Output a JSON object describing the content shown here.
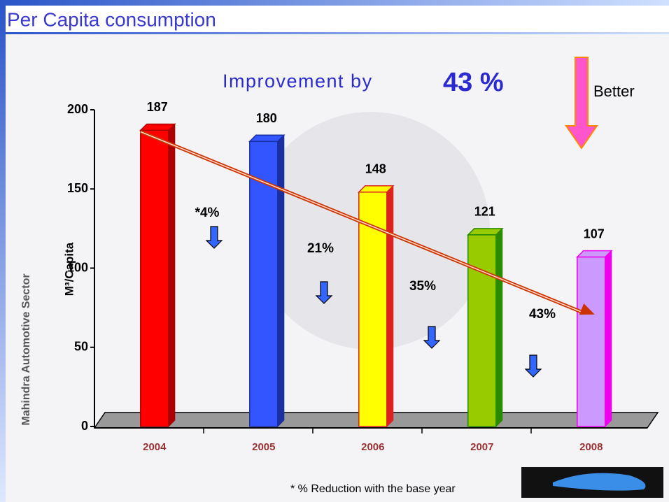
{
  "chart_data": {
    "type": "bar",
    "title": "Per Capita consumption",
    "annotation": "Improvement by",
    "improvement": "43 %",
    "direction_label": "Better",
    "y_label": "M³/Capita",
    "categories": [
      "2004",
      "2005",
      "2006",
      "2007",
      "2008"
    ],
    "values": [
      187,
      180,
      148,
      121,
      107
    ],
    "colors": [
      "#ff0000",
      "#3355ff",
      "#ffff00",
      "#99cc00",
      "#cc99ff"
    ],
    "edge_colors": [
      "#aa0000",
      "#1a2fa0",
      "#dd2222",
      "#2a8a00",
      "#ee00ee"
    ],
    "reductions": [
      "*4%",
      "21%",
      "35%",
      "43%"
    ],
    "ylim": [
      0,
      200
    ],
    "yticks": [
      0,
      50,
      100,
      150,
      200
    ],
    "footnote": "* % Reduction with the base year",
    "side_logo": "Mahindra Automotive Sector"
  }
}
